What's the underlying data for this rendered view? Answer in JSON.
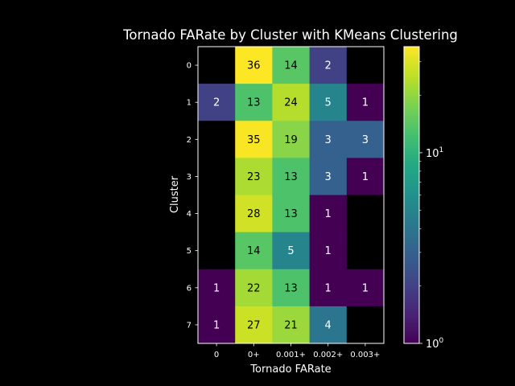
{
  "chart_data": {
    "type": "heatmap",
    "title": "Tornado FARate by Cluster with KMeans Clustering",
    "xlabel": "Tornado FARate",
    "ylabel": "Cluster",
    "x_categories": [
      "0",
      "0+",
      "0.001+",
      "0.002+",
      "0.003+"
    ],
    "y_categories": [
      "0",
      "1",
      "2",
      "3",
      "4",
      "5",
      "6",
      "7"
    ],
    "values": [
      [
        null,
        36,
        14,
        2,
        null
      ],
      [
        2,
        13,
        24,
        5,
        1
      ],
      [
        null,
        35,
        19,
        3,
        3
      ],
      [
        null,
        23,
        13,
        3,
        1
      ],
      [
        null,
        28,
        13,
        1,
        null
      ],
      [
        null,
        14,
        5,
        1,
        null
      ],
      [
        1,
        22,
        13,
        1,
        1
      ],
      [
        1,
        27,
        21,
        4,
        null
      ]
    ],
    "colorscale": "viridis",
    "color_scale_type": "log",
    "color_range": [
      1,
      36
    ],
    "colorbar_ticks": [
      "10^0",
      "10^1"
    ],
    "missing_color": "#000000",
    "background": "#000000",
    "text_color": "#ffffff",
    "grid": false
  }
}
